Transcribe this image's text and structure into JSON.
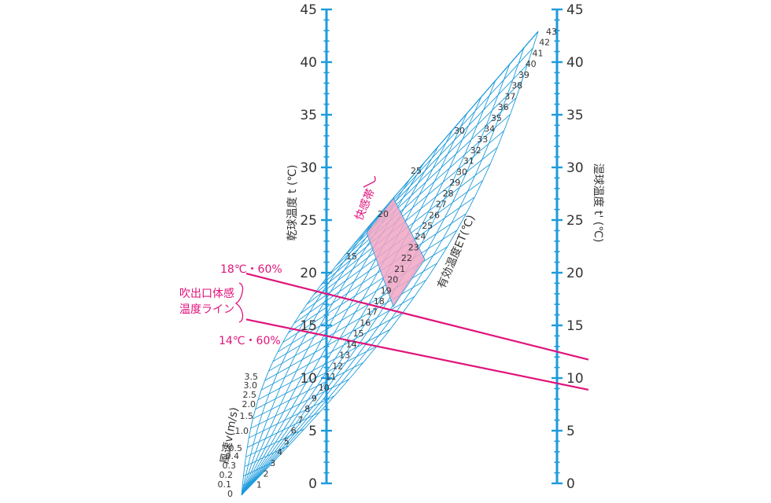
{
  "colors": {
    "axis": "#1e9bdc",
    "grid": "#1e9bdc",
    "line": "#e0137b",
    "comfort_fill": "#f2a6c4",
    "text": "#333333"
  },
  "chart_data": {
    "type": "nomogram",
    "left_axis": {
      "title": "乾球温度 t (℃)",
      "range": [
        0,
        45
      ],
      "tick_labels": [
        "0",
        "5",
        "10",
        "15",
        "20",
        "25",
        "30",
        "35",
        "40",
        "45"
      ]
    },
    "right_axis": {
      "title": "湿球温度 t' (℃)",
      "range": [
        0,
        45
      ],
      "tick_labels": [
        "0",
        "5",
        "10",
        "15",
        "20",
        "25",
        "30",
        "35",
        "40",
        "45"
      ]
    },
    "wind_speed": {
      "title": "風速v(m/s)",
      "labels": [
        "0",
        "0.1",
        "0.2",
        "0.3",
        "0.4",
        "0.5",
        "1.0",
        "1.5",
        "2.0",
        "2.5",
        "3.0",
        "3.5"
      ]
    },
    "effective_temp": {
      "title": "有効温度ET(℃)",
      "center_scale": [
        "1",
        "2",
        "3",
        "4",
        "5",
        "6",
        "7",
        "8",
        "9",
        "10",
        "11",
        "12",
        "13",
        "14",
        "15",
        "16",
        "17",
        "18",
        "19",
        "20",
        "21",
        "22",
        "23",
        "24",
        "25",
        "26",
        "27",
        "28",
        "29",
        "30",
        "31",
        "32",
        "33",
        "34",
        "35",
        "36",
        "37",
        "38",
        "39",
        "40",
        "41",
        "42",
        "43"
      ],
      "upper_labels": [
        "15",
        "20",
        "25",
        "30"
      ]
    },
    "comfort_zone": {
      "label": "快感帯"
    },
    "lines": [
      {
        "label": "18℃・60%",
        "dry_bulb": 18,
        "wet_bulb": 12.5
      },
      {
        "label": "14℃・60%",
        "dry_bulb": 14,
        "wet_bulb": 9.5
      }
    ],
    "bracket_label": [
      "吹出口体感",
      "温度ライン"
    ]
  }
}
